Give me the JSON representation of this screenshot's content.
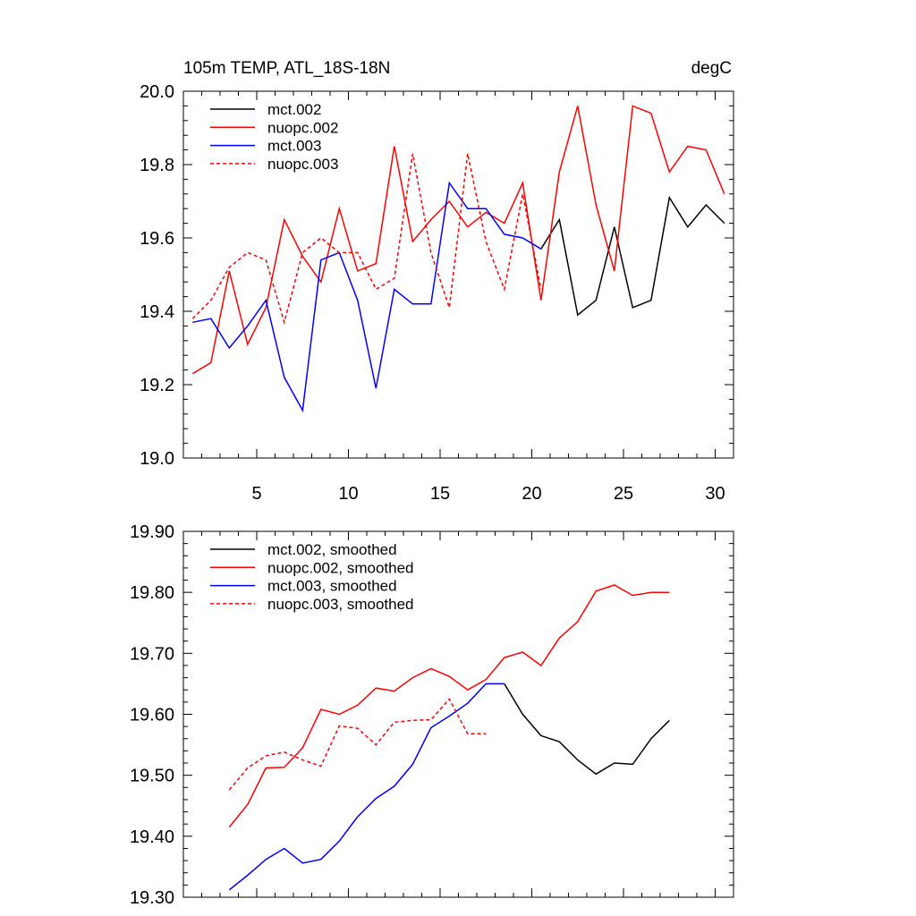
{
  "chart_data": [
    {
      "type": "line",
      "title": "105m TEMP, ATL_18S-18N",
      "units": "degC",
      "xlabel": "",
      "ylabel": "",
      "xlim": [
        1,
        31
      ],
      "ylim": [
        19.0,
        20.0
      ],
      "xticks": [
        5,
        10,
        15,
        20,
        25,
        30
      ],
      "yticks": [
        "19.0",
        "19.2",
        "19.4",
        "19.6",
        "19.8",
        "20.0"
      ],
      "legend_position": "top-left",
      "series": [
        {
          "name": "mct.002",
          "color": "#000000",
          "dash": "solid",
          "x": [
            20.5,
            21.5,
            22.5,
            23.5,
            24.5,
            25.5,
            26.5,
            27.5,
            28.5,
            29.5,
            30.5
          ],
          "values": [
            19.57,
            19.65,
            19.39,
            19.43,
            19.63,
            19.41,
            19.43,
            19.71,
            19.63,
            19.69,
            19.64
          ]
        },
        {
          "name": "nuopc.002",
          "color": "#ff0000",
          "dash": "solid",
          "x": [
            1.5,
            2.5,
            3.5,
            4.5,
            5.5,
            6.5,
            7.5,
            8.5,
            9.5,
            10.5,
            11.5,
            12.5,
            13.5,
            14.5,
            15.5,
            16.5,
            17.5,
            18.5,
            19.5,
            20.5,
            21.5,
            22.5,
            23.5,
            24.5,
            25.5,
            26.5,
            27.5,
            28.5,
            29.5,
            30.5
          ],
          "values": [
            19.23,
            19.26,
            19.51,
            19.31,
            19.41,
            19.65,
            19.55,
            19.48,
            19.68,
            19.51,
            19.53,
            19.85,
            19.59,
            19.65,
            19.7,
            19.63,
            19.67,
            19.64,
            19.75,
            19.43,
            19.78,
            19.96,
            19.69,
            19.51,
            19.96,
            19.94,
            19.78,
            19.85,
            19.84,
            19.72
          ]
        },
        {
          "name": "mct.003",
          "color": "#0000ff",
          "dash": "solid",
          "x": [
            1.5,
            2.5,
            3.5,
            4.5,
            5.5,
            6.5,
            7.5,
            8.5,
            9.5,
            10.5,
            11.5,
            12.5,
            13.5,
            14.5,
            15.5,
            16.5,
            17.5,
            18.5,
            19.5,
            20.5
          ],
          "values": [
            19.37,
            19.38,
            19.3,
            19.36,
            19.43,
            19.22,
            19.13,
            19.54,
            19.56,
            19.43,
            19.19,
            19.46,
            19.42,
            19.42,
            19.75,
            19.68,
            19.68,
            19.61,
            19.6,
            19.57
          ]
        },
        {
          "name": "nuopc.003",
          "color": "#ff0000",
          "dash": "dashed",
          "x": [
            1.5,
            2.5,
            3.5,
            4.5,
            5.5,
            6.5,
            7.5,
            8.5,
            9.5,
            10.5,
            11.5,
            12.5,
            13.5,
            14.5,
            15.5,
            16.5,
            17.5,
            18.5,
            19.5,
            20.5
          ],
          "values": [
            19.38,
            19.43,
            19.52,
            19.56,
            19.54,
            19.37,
            19.56,
            19.6,
            19.56,
            19.56,
            19.46,
            19.49,
            19.83,
            19.56,
            19.41,
            19.83,
            19.59,
            19.46,
            19.72,
            19.46
          ]
        }
      ]
    },
    {
      "type": "line",
      "title": "",
      "xlabel": "",
      "ylabel": "",
      "xlim": [
        1,
        31
      ],
      "ylim": [
        19.3,
        19.9
      ],
      "xticks": [
        5,
        10,
        15,
        20,
        25,
        30
      ],
      "show_xtick_labels": false,
      "yticks": [
        "19.30",
        "19.40",
        "19.50",
        "19.60",
        "19.70",
        "19.80",
        "19.90"
      ],
      "legend_position": "top-left",
      "series": [
        {
          "name": "mct.002, smoothed",
          "color": "#000000",
          "dash": "solid",
          "x": [
            18.5,
            19.5,
            20.5,
            21.5,
            22.5,
            23.5,
            24.5,
            25.5,
            26.5,
            27.5
          ],
          "values": [
            19.65,
            19.6,
            19.565,
            19.555,
            19.525,
            19.502,
            19.52,
            19.518,
            19.56,
            19.59
          ]
        },
        {
          "name": "nuopc.002, smoothed",
          "color": "#ff0000",
          "dash": "solid",
          "x": [
            3.5,
            4.5,
            5.5,
            6.5,
            7.5,
            8.5,
            9.5,
            10.5,
            11.5,
            12.5,
            13.5,
            14.5,
            15.5,
            16.5,
            17.5,
            18.5,
            19.5,
            20.5,
            21.5,
            22.5,
            23.5,
            24.5,
            25.5,
            26.5,
            27.5
          ],
          "values": [
            19.415,
            19.452,
            19.512,
            19.513,
            19.545,
            19.608,
            19.6,
            19.615,
            19.643,
            19.638,
            19.66,
            19.675,
            19.662,
            19.64,
            19.657,
            19.693,
            19.702,
            19.68,
            19.725,
            19.752,
            19.802,
            19.812,
            19.795,
            19.8,
            19.8
          ]
        },
        {
          "name": "mct.003, smoothed",
          "color": "#0000ff",
          "dash": "solid",
          "x": [
            3.5,
            4.5,
            5.5,
            6.5,
            7.5,
            8.5,
            9.5,
            10.5,
            11.5,
            12.5,
            13.5,
            14.5,
            15.5,
            16.5,
            17.5,
            18.5
          ],
          "values": [
            19.312,
            19.336,
            19.362,
            19.38,
            19.356,
            19.362,
            19.392,
            19.432,
            19.462,
            19.482,
            19.518,
            19.578,
            19.597,
            19.618,
            19.65,
            19.65
          ]
        },
        {
          "name": "nuopc.003, smoothed",
          "color": "#ff0000",
          "dash": "dashed",
          "x": [
            3.5,
            4.5,
            5.5,
            6.5,
            7.5,
            8.5,
            9.5,
            10.5,
            11.5,
            12.5,
            13.5,
            14.5,
            15.5,
            16.5,
            17.5
          ],
          "values": [
            19.476,
            19.512,
            19.532,
            19.538,
            19.525,
            19.515,
            19.581,
            19.577,
            19.55,
            19.587,
            19.59,
            19.591,
            19.625,
            19.568,
            19.568
          ]
        }
      ]
    }
  ]
}
